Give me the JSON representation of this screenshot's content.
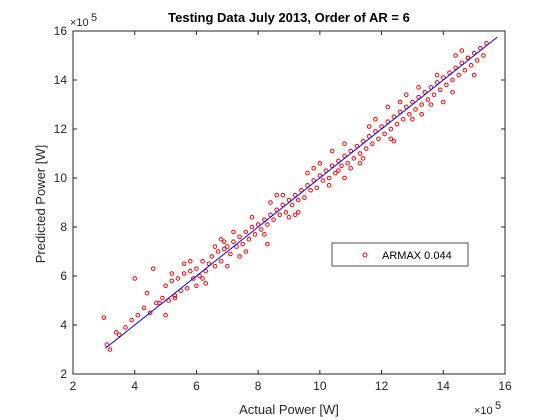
{
  "chart_data": {
    "type": "scatter",
    "title": "Testing Data July 2013, Order of AR = 6",
    "xlabel": "Actual Power [W]",
    "ylabel": "Predicted Power [W]",
    "x_multiplier": "×10",
    "y_multiplier": "×10",
    "multiplier_exponent": "5",
    "xlim": [
      2,
      16
    ],
    "ylim": [
      2,
      16
    ],
    "xticks": [
      "2",
      "4",
      "6",
      "8",
      "10",
      "12",
      "14",
      "16"
    ],
    "yticks": [
      "2",
      "4",
      "6",
      "8",
      "10",
      "12",
      "14",
      "16"
    ],
    "grid": false,
    "legend_position": "center-right",
    "series": [
      {
        "name": "ARMAX 0.044",
        "kind": "scatter",
        "marker": "circle",
        "color": "#ff0000",
        "x": [
          3.0,
          3.1,
          3.2,
          3.5,
          3.7,
          3.9,
          4.1,
          4.3,
          4.5,
          4.7,
          4.9,
          5.0,
          5.1,
          5.2,
          5.3,
          5.4,
          5.5,
          5.6,
          5.7,
          5.8,
          5.9,
          6.0,
          6.1,
          6.2,
          6.3,
          6.4,
          6.5,
          6.6,
          6.7,
          6.8,
          6.9,
          7.0,
          7.1,
          7.2,
          7.3,
          7.4,
          7.5,
          7.6,
          7.7,
          7.8,
          7.9,
          8.0,
          8.1,
          8.2,
          8.3,
          8.4,
          8.5,
          8.6,
          8.7,
          8.8,
          8.9,
          9.0,
          9.1,
          9.2,
          9.3,
          9.4,
          9.5,
          9.6,
          9.7,
          9.8,
          9.9,
          10.0,
          10.1,
          10.2,
          10.3,
          10.4,
          10.5,
          10.6,
          10.7,
          10.8,
          10.9,
          11.0,
          11.1,
          11.2,
          11.3,
          11.4,
          11.5,
          11.6,
          11.7,
          11.8,
          11.9,
          12.0,
          12.1,
          12.2,
          12.3,
          12.4,
          12.5,
          12.6,
          12.7,
          12.8,
          12.9,
          13.0,
          13.1,
          13.2,
          13.3,
          13.4,
          13.5,
          13.6,
          13.7,
          13.8,
          13.9,
          14.0,
          14.1,
          14.2,
          14.3,
          14.4,
          14.5,
          14.6,
          14.7,
          14.8,
          14.9,
          15.0,
          15.1,
          15.2,
          15.3,
          15.4,
          4.0,
          4.6,
          5.3,
          5.8,
          6.3,
          6.9,
          7.4,
          7.8,
          8.3,
          8.8,
          9.3,
          9.8,
          10.3,
          10.8,
          11.3,
          11.8,
          12.3,
          12.8,
          13.3,
          13.8,
          14.3,
          14.8,
          5.2,
          6.0,
          6.8,
          7.6,
          8.4,
          9.2,
          10.0,
          10.8,
          11.6,
          12.4,
          13.2,
          14.0,
          4.4,
          5.0,
          5.6,
          6.2,
          7.2,
          8.2,
          9.6,
          10.6,
          11.4,
          12.6,
          13.6,
          14.6,
          3.4,
          4.8,
          6.6,
          7.0,
          8.6,
          9.0,
          10.4,
          11.0,
          12.2,
          13.0,
          14.4,
          15.0
        ],
        "y": [
          4.3,
          3.2,
          3.0,
          3.6,
          3.9,
          4.2,
          4.4,
          4.7,
          4.5,
          4.9,
          5.1,
          5.6,
          5.0,
          5.8,
          5.2,
          5.9,
          5.4,
          6.1,
          5.5,
          6.2,
          5.9,
          6.3,
          6.0,
          6.6,
          6.2,
          6.5,
          6.8,
          6.4,
          7.0,
          6.6,
          7.1,
          7.2,
          6.9,
          7.4,
          7.2,
          7.6,
          7.3,
          7.8,
          7.5,
          8.0,
          7.7,
          8.1,
          7.9,
          8.3,
          8.1,
          8.5,
          8.3,
          8.7,
          8.5,
          8.9,
          8.6,
          9.1,
          8.9,
          9.3,
          9.1,
          9.5,
          9.2,
          9.7,
          9.5,
          9.9,
          9.6,
          10.1,
          9.9,
          10.3,
          10.0,
          10.5,
          10.2,
          10.7,
          10.5,
          10.9,
          10.6,
          11.1,
          10.8,
          11.3,
          11.0,
          11.5,
          11.2,
          11.7,
          11.4,
          11.9,
          11.6,
          12.1,
          11.8,
          12.3,
          12.0,
          12.5,
          12.2,
          12.7,
          12.4,
          12.9,
          12.6,
          13.1,
          12.8,
          13.3,
          13.0,
          13.5,
          13.2,
          13.7,
          13.4,
          13.9,
          13.6,
          14.1,
          13.8,
          14.3,
          14.0,
          14.5,
          14.2,
          14.7,
          14.4,
          14.9,
          14.6,
          15.1,
          14.8,
          15.3,
          15.0,
          15.5,
          5.9,
          6.3,
          5.1,
          6.6,
          5.7,
          7.4,
          6.8,
          8.4,
          7.3,
          9.3,
          8.6,
          10.4,
          9.7,
          11.4,
          10.6,
          12.4,
          11.6,
          13.4,
          12.6,
          14.2,
          13.5,
          14.9,
          6.1,
          5.6,
          7.5,
          7.0,
          9.0,
          8.5,
          10.6,
          10.0,
          12.1,
          11.5,
          13.7,
          13.1,
          5.3,
          4.4,
          6.5,
          5.9,
          7.8,
          7.7,
          10.2,
          10.3,
          10.8,
          13.1,
          13.0,
          15.2,
          3.7,
          4.9,
          7.2,
          6.4,
          9.3,
          8.4,
          11.1,
          10.4,
          12.9,
          12.4,
          15.0,
          14.2
        ]
      },
      {
        "name": "",
        "kind": "line",
        "color": "#0000ff",
        "x": [
          3.05,
          15.75
        ],
        "y": [
          3.05,
          15.75
        ]
      }
    ],
    "legend": [
      {
        "label": "ARMAX 0.044",
        "marker": "circle",
        "color": "#ff0000"
      }
    ]
  }
}
